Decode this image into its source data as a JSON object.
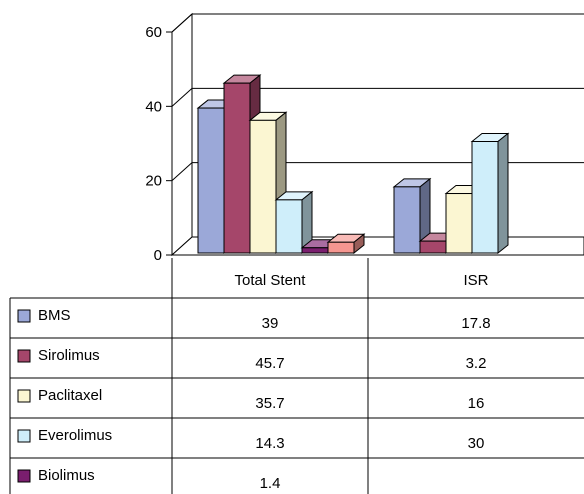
{
  "chart_data": {
    "type": "bar",
    "categories": [
      "Total Stent",
      "ISR"
    ],
    "series": [
      {
        "name": "BMS",
        "values": [
          39,
          17.8
        ],
        "color": "#9ba8d8"
      },
      {
        "name": "Sirolimus",
        "values": [
          45.7,
          3.2
        ],
        "color": "#a5466a"
      },
      {
        "name": "Paclitaxel",
        "values": [
          35.7,
          16
        ],
        "color": "#fbf6d2"
      },
      {
        "name": "Everolimus",
        "values": [
          14.3,
          30
        ],
        "color": "#cfeefa"
      },
      {
        "name": "Biolimus",
        "values": [
          1.4,
          null
        ],
        "color": "#7a1e6e"
      },
      {
        "name": "",
        "values": [
          2.9,
          null
        ],
        "color": "#f59690"
      }
    ],
    "yticks": [
      "0",
      "20",
      "40",
      "60"
    ],
    "ylim": [
      0,
      60
    ],
    "table": {
      "rows": [
        {
          "name": "BMS",
          "cells": [
            "39",
            "17.8"
          ]
        },
        {
          "name": "Sirolimus",
          "cells": [
            "45.7",
            "3.2"
          ]
        },
        {
          "name": "Paclitaxel",
          "cells": [
            "35.7",
            "16"
          ]
        },
        {
          "name": "Everolimus",
          "cells": [
            "14.3",
            "30"
          ]
        },
        {
          "name": "Biolimus",
          "cells": [
            "1.4",
            ""
          ]
        }
      ]
    },
    "grid": true,
    "legend": "table-left"
  }
}
